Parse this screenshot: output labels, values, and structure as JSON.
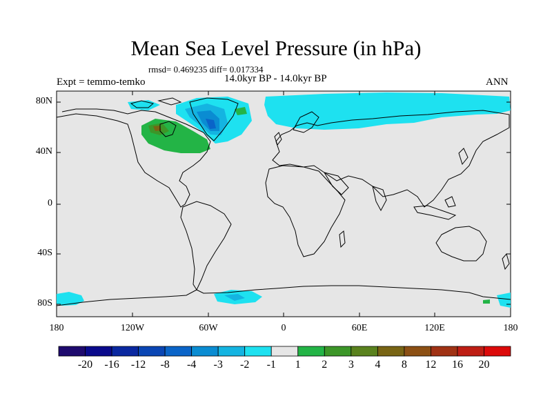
{
  "title": "Mean Sea Level Pressure (in hPa)",
  "stats": "rmsd= 0.469235 diff= 0.017334",
  "period": "14.0kyr BP - 14.0kyr BP",
  "expt": "Expt = temmo-temko",
  "season": "ANN",
  "lat_labels": [
    "80N",
    "40N",
    "0",
    "40S",
    "80S"
  ],
  "lon_labels": [
    "180",
    "120W",
    "60W",
    "0",
    "60E",
    "120E",
    "180"
  ],
  "colorbar": {
    "labels": [
      "-20",
      "-16",
      "-12",
      "-8",
      "-4",
      "-3",
      "-2",
      "-1",
      "1",
      "2",
      "3",
      "4",
      "8",
      "12",
      "16",
      "20"
    ],
    "colors": [
      "#1e0a6e",
      "#0a0a8c",
      "#0a28a0",
      "#0a46b4",
      "#0a64c8",
      "#0a8cd2",
      "#14b4e1",
      "#1ee1f0",
      "#e6e6e6",
      "#23b446",
      "#3c9628",
      "#5a821e",
      "#786414",
      "#8c5014",
      "#a03214",
      "#be1e14",
      "#dc0a0a"
    ]
  },
  "colors": {
    "ocean_land": "#e6e6e6",
    "coast": "#000000"
  }
}
